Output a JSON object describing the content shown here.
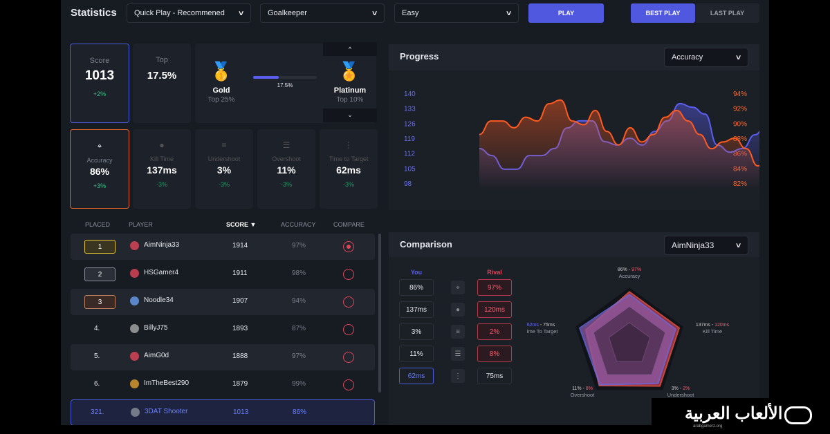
{
  "header": {
    "title": "Statistics",
    "mode": "Quick Play - Recommened",
    "role": "Goalkeeper",
    "difficulty": "Easy",
    "play": "PLAY",
    "tab_best": "BEST PLAY",
    "tab_last": "LAST PLAY"
  },
  "score": {
    "label": "Score",
    "value": "1013",
    "delta": "+2%"
  },
  "top": {
    "label": "Top",
    "value": "17.5%"
  },
  "rank": {
    "current": "Gold",
    "current_sub": "Top 25%",
    "next": "Platinum",
    "next_sub": "Top 10%",
    "progress_label": "17.5%",
    "progress": 0.4
  },
  "metrics": [
    {
      "label": "Accuracy",
      "value": "86%",
      "delta": "+3%",
      "icon": "crosshair-icon"
    },
    {
      "label": "Kill Time",
      "value": "137ms",
      "delta": "-3%",
      "icon": "fist-icon"
    },
    {
      "label": "Undershoot",
      "value": "3%",
      "delta": "-3%",
      "icon": "undershoot-icon"
    },
    {
      "label": "Overshoot",
      "value": "11%",
      "delta": "-3%",
      "icon": "overshoot-icon"
    },
    {
      "label": "Time to Target",
      "value": "62ms",
      "delta": "-3%",
      "icon": "target-time-icon"
    }
  ],
  "leaderboard": {
    "headers": [
      "PLACED",
      "PLAYER",
      "SCORE ▼",
      "ACCURACY",
      "COMPARE"
    ],
    "rows": [
      {
        "place": "1",
        "player": "AimNinja33",
        "score": "1914",
        "accuracy": "97%"
      },
      {
        "place": "2",
        "player": "HSGamer4",
        "score": "1911",
        "accuracy": "98%"
      },
      {
        "place": "3",
        "player": "Noodle34",
        "score": "1907",
        "accuracy": "94%"
      },
      {
        "place": "4.",
        "player": "BillyJ75",
        "score": "1893",
        "accuracy": "87%"
      },
      {
        "place": "5.",
        "player": "AimG0d",
        "score": "1888",
        "accuracy": "97%"
      },
      {
        "place": "6.",
        "player": "ImTheBest290",
        "score": "1879",
        "accuracy": "99%"
      },
      {
        "place": "321.",
        "player": "3DAT Shooter",
        "score": "1013",
        "accuracy": "86%"
      }
    ]
  },
  "progress": {
    "title": "Progress",
    "select": "Accuracy"
  },
  "chart_data": {
    "type": "area",
    "left_ticks": [
      "140",
      "133",
      "126",
      "119",
      "112",
      "105",
      "98"
    ],
    "right_ticks": [
      "94%",
      "92%",
      "90%",
      "88%",
      "86%",
      "84%",
      "82%"
    ],
    "ylim_left": [
      98,
      140
    ],
    "ylim_right": [
      82,
      94
    ],
    "series": [
      {
        "color": "#5b5ff0",
        "axis": "left",
        "values": [
          114.2,
          110.9,
          104.5,
          104.5,
          110.9,
          110.9,
          114.2,
          123.8,
          127.1,
          127.1,
          117.4,
          115.8,
          119,
          115.8,
          122.2,
          127.1,
          135.2,
          133.5,
          130.3,
          115.8,
          112.5,
          114.2,
          120.6,
          127.1,
          125.5,
          123.8
        ]
      },
      {
        "color": "#ff5a1f",
        "axis": "right",
        "values": [
          88.5,
          90.3,
          90.3,
          89.4,
          90.8,
          90.3,
          92.6,
          93.1,
          90.3,
          89.8,
          91.7,
          88.9,
          87.1,
          89.4,
          87.5,
          88.5,
          90.8,
          91.7,
          90.3,
          88.5,
          86.6,
          87.5,
          88,
          86.6,
          84.3,
          85.7,
          85.2,
          83.8
        ]
      }
    ]
  },
  "comparison": {
    "title": "Comparison",
    "select": "AimNinja33",
    "you_label": "You",
    "rival_label": "Rival",
    "rows": [
      {
        "you": "86%",
        "rival": "97%",
        "icon": "crosshair-icon"
      },
      {
        "you": "137ms",
        "rival": "120ms",
        "icon": "fist-icon"
      },
      {
        "you": "3%",
        "rival": "2%",
        "icon": "undershoot-icon"
      },
      {
        "you": "11%",
        "rival": "8%",
        "icon": "overshoot-icon"
      },
      {
        "you": "62ms",
        "rival": "75ms",
        "icon": "target-time-icon"
      }
    ],
    "radar": [
      {
        "label": "Accuracy",
        "you": "86%",
        "rival": "97%",
        "you_level": 0.92,
        "rival_level": 0.97
      },
      {
        "label": "Kill Time",
        "you": "137ms",
        "rival": "120ms",
        "you_level": 0.9,
        "rival_level": 0.97
      },
      {
        "label": "Undershoot",
        "you": "3%",
        "rival": "2%",
        "you_level": 0.9,
        "rival_level": 0.96
      },
      {
        "label": "Overshoot",
        "you": "11%",
        "rival": "8%",
        "you_level": 0.93,
        "rival_level": 0.95
      },
      {
        "label": "Time To Target",
        "you": "62ms",
        "rival": "75ms",
        "you_level": 0.97,
        "rival_level": 0.85
      }
    ]
  },
  "watermark": {
    "text": "الألعاب العربية",
    "sub": "arabgamerz.org"
  }
}
